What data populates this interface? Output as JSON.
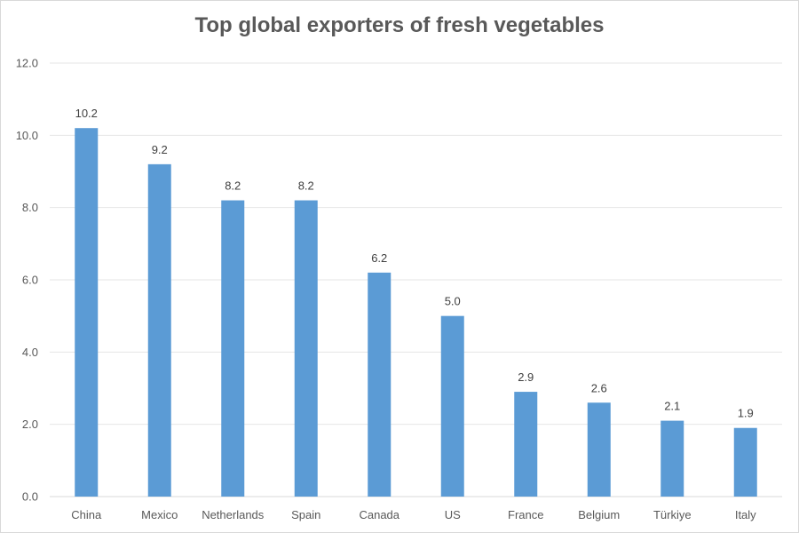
{
  "chart_data": {
    "type": "bar",
    "title": "Top global exporters of fresh vegetables",
    "categories": [
      "China",
      "Mexico",
      "Netherlands",
      "Spain",
      "Canada",
      "US",
      "France",
      "Belgium",
      "Türkiye",
      "Italy"
    ],
    "values": [
      10.2,
      9.2,
      8.2,
      8.2,
      6.2,
      5.0,
      2.9,
      2.6,
      2.1,
      1.9
    ],
    "data_labels": [
      "10.2",
      "9.2",
      "8.2",
      "8.2",
      "6.2",
      "5.0",
      "2.9",
      "2.6",
      "2.1",
      "1.9"
    ],
    "xlabel": "",
    "ylabel": "",
    "ylim": [
      0,
      12
    ],
    "y_ticks": [
      0,
      2,
      4,
      6,
      8,
      10,
      12
    ],
    "y_tick_labels": [
      "0.0",
      "2.0",
      "4.0",
      "6.0",
      "8.0",
      "10.0",
      "12.0"
    ],
    "grid": true,
    "legend": "none",
    "bar_color": "#5b9bd5"
  }
}
